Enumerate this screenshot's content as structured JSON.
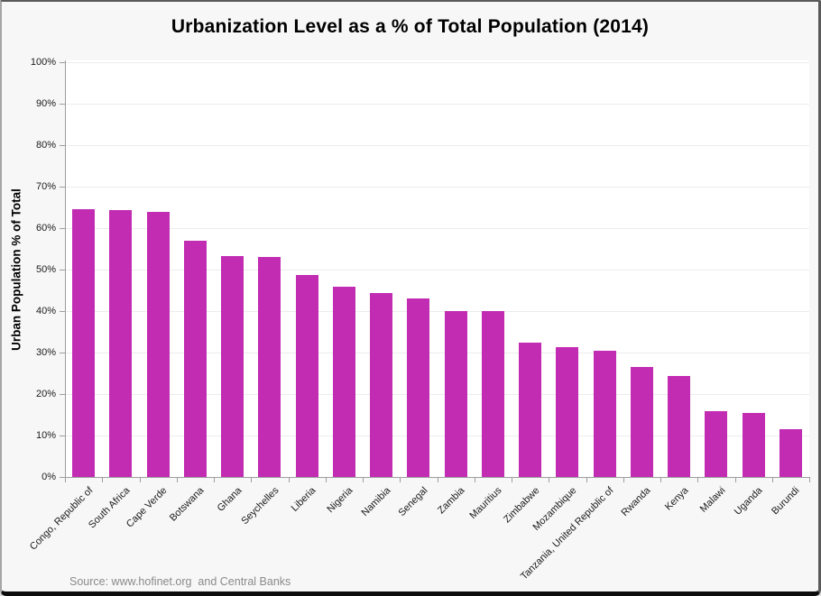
{
  "chart_data": {
    "type": "bar",
    "title": "Urbanization Level as a % of Total Population (2014)",
    "ylabel": "Urban Population % of Total",
    "xlabel": "",
    "categories": [
      "Congo, Republic of",
      "South Africa",
      "Cape Verde",
      "Botswana",
      "Ghana",
      "Seychelles",
      "Liberia",
      "Nigeria",
      "Namibia",
      "Senegal",
      "Zambia",
      "Mauritius",
      "Zimbabwe",
      "Mozambique",
      "Tanzania, United Republic of",
      "Rwanda",
      "Kenya",
      "Malawi",
      "Uganda",
      "Burundi"
    ],
    "values": [
      64.5,
      64.3,
      63.9,
      57.0,
      53.3,
      53.1,
      48.8,
      45.9,
      44.3,
      43.1,
      40.0,
      39.9,
      32.3,
      31.3,
      30.5,
      26.6,
      24.4,
      15.9,
      15.5,
      11.5
    ],
    "ylim": [
      0,
      100
    ],
    "ytick_step": 10,
    "ytick_suffix": "%",
    "grid": true,
    "legend": false,
    "bar_color": "#C22CB2"
  },
  "footer": {
    "source": "Source: www.hofinet.org  and Central Banks"
  },
  "colors": {
    "figure_background": "#F7F7F7",
    "plot_background": "#FFFFFF",
    "gridline": "#ECECEC",
    "axis": "#9E9E9E",
    "bar": "#C22CB2",
    "title_text": "#000000",
    "source_text": "#8A8A8A"
  }
}
